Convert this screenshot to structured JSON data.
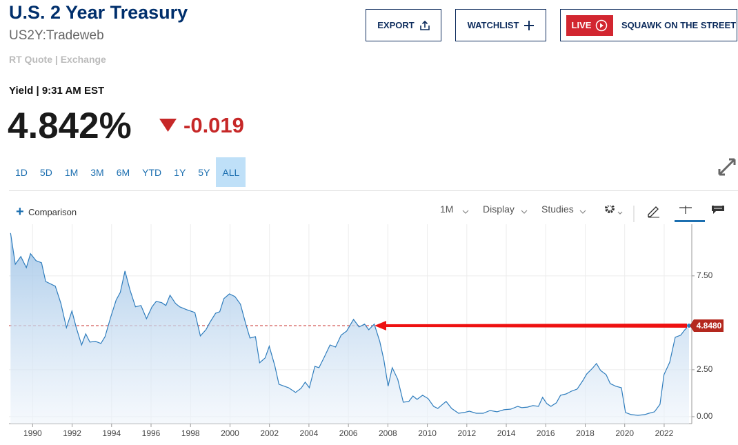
{
  "header": {
    "title": "U.S. 2 Year Treasury",
    "symbol": "US2Y:Tradeweb",
    "source": "RT Quote | Exchange"
  },
  "buttons": [
    "EXPORT",
    "WATCHLIST"
  ],
  "live": {
    "badge": "LIVE",
    "label": "SQUAWK ON THE STREET"
  },
  "quote": {
    "label": "Yield | 9:31 AM EST",
    "price": "4.842%",
    "change": "-0.019"
  },
  "ranges": [
    "1D",
    "5D",
    "1M",
    "3M",
    "6M",
    "YTD",
    "1Y",
    "5Y",
    "ALL"
  ],
  "active_range": "ALL",
  "toolbar": {
    "comparison": "Comparison",
    "interval": "1M",
    "display": "Display",
    "studies": "Studies"
  },
  "chart_data": {
    "type": "area",
    "color": "#2f7dbd",
    "x": [
      1988.88,
      1989.12,
      1989.4,
      1989.68,
      1989.89,
      1990.17,
      1990.45,
      1990.66,
      1991.15,
      1991.43,
      1991.71,
      1991.99,
      1992.2,
      1992.48,
      1992.69,
      1992.9,
      1993.18,
      1993.46,
      1993.67,
      1993.95,
      1994.23,
      1994.44,
      1994.68,
      1994.93,
      1995.21,
      1995.49,
      1995.77,
      1996.05,
      1996.26,
      1996.54,
      1996.75,
      1996.96,
      1997.24,
      1997.45,
      1997.8,
      1998.22,
      1998.5,
      1998.78,
      1998.99,
      1999.27,
      1999.48,
      1999.69,
      1999.97,
      2000.25,
      2000.53,
      2000.8,
      2001.01,
      2001.29,
      2001.5,
      2001.78,
      2001.99,
      2002.27,
      2002.48,
      2002.97,
      2003.32,
      2003.6,
      2003.81,
      2004.02,
      2004.3,
      2004.51,
      2004.79,
      2005.07,
      2005.35,
      2005.63,
      2005.91,
      2006.26,
      2006.54,
      2006.82,
      2007.03,
      2007.31,
      2007.59,
      2007.8,
      2008.01,
      2008.22,
      2008.5,
      2008.78,
      2009.06,
      2009.27,
      2009.48,
      2009.76,
      2010.04,
      2010.32,
      2010.53,
      2010.74,
      2010.95,
      2011.23,
      2011.58,
      2011.86,
      2012.13,
      2012.48,
      2012.83,
      2013.18,
      2013.53,
      2013.88,
      2014.23,
      2014.58,
      2014.79,
      2015.07,
      2015.35,
      2015.63,
      2015.84,
      2016.05,
      2016.26,
      2016.54,
      2016.75,
      2017.03,
      2017.31,
      2017.59,
      2017.87,
      2018.08,
      2018.36,
      2018.57,
      2018.78,
      2019.06,
      2019.27,
      2019.55,
      2019.83,
      2020.04,
      2020.32,
      2020.67,
      2021.02,
      2021.23,
      2021.51,
      2021.79,
      2021.99,
      2022.28,
      2022.56,
      2022.84,
      2023.05,
      2023.26
    ],
    "values": [
      9.78,
      8.12,
      8.53,
      7.94,
      8.68,
      8.31,
      8.2,
      7.2,
      6.95,
      6.03,
      4.74,
      5.63,
      4.78,
      3.82,
      4.41,
      3.97,
      4.01,
      3.9,
      4.26,
      5.29,
      6.21,
      6.62,
      7.76,
      6.76,
      5.85,
      5.92,
      5.22,
      5.85,
      6.14,
      6.07,
      5.92,
      6.47,
      6.03,
      5.85,
      5.7,
      5.55,
      4.3,
      4.63,
      5.04,
      5.51,
      5.59,
      6.29,
      6.54,
      6.4,
      5.99,
      4.93,
      4.19,
      4.26,
      2.87,
      3.13,
      3.75,
      2.72,
      1.73,
      1.54,
      1.29,
      1.51,
      1.84,
      1.54,
      2.68,
      2.61,
      3.2,
      3.82,
      3.71,
      4.34,
      4.56,
      5.18,
      4.78,
      4.93,
      4.63,
      4.93,
      4.01,
      3.01,
      1.62,
      2.61,
      1.99,
      0.77,
      0.81,
      1.1,
      0.92,
      1.14,
      0.96,
      0.55,
      0.44,
      0.63,
      0.81,
      0.44,
      0.18,
      0.22,
      0.29,
      0.18,
      0.18,
      0.33,
      0.26,
      0.37,
      0.4,
      0.55,
      0.48,
      0.51,
      0.59,
      0.55,
      1.03,
      0.7,
      0.55,
      0.74,
      1.14,
      1.21,
      1.36,
      1.47,
      1.91,
      2.28,
      2.57,
      2.83,
      2.46,
      2.24,
      1.76,
      1.62,
      1.54,
      0.22,
      0.11,
      0.07,
      0.11,
      0.18,
      0.26,
      0.66,
      2.24,
      2.9,
      4.23,
      4.34,
      4.63,
      4.848
    ],
    "xlim": [
      1988.8,
      2023.4
    ],
    "xticks": [
      1990,
      1992,
      1994,
      1996,
      1998,
      2000,
      2002,
      2004,
      2006,
      2008,
      2010,
      2012,
      2014,
      2016,
      2018,
      2020,
      2022
    ],
    "ylim": [
      -0.37,
      10.25
    ],
    "yticks": [
      {
        "value": 0,
        "label": "0.00"
      },
      {
        "value": 2.5,
        "label": "2.50"
      },
      {
        "value": 7.5,
        "label": "7.50"
      }
    ],
    "grid": true,
    "reference_line": {
      "value": 4.848,
      "label": "4.8480",
      "color": "#c9302c"
    }
  }
}
